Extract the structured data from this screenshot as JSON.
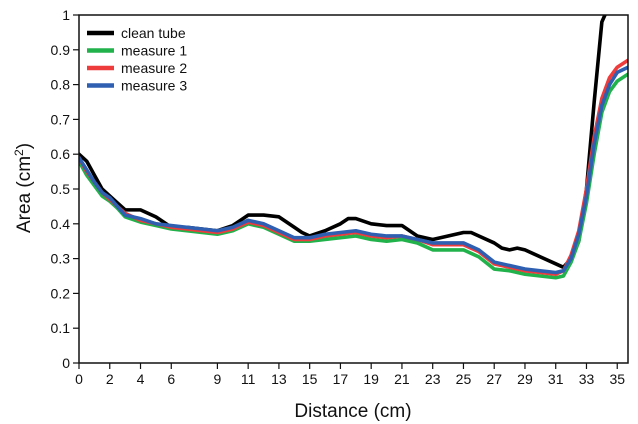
{
  "chart_data": {
    "type": "line",
    "title": "",
    "xlabel": "Distance (cm)",
    "ylabel_main": "Area (cm",
    "ylabel_sup": "2",
    "ylabel_close": ")",
    "xlim": [
      0,
      35.7
    ],
    "ylim": [
      0,
      1
    ],
    "xticks": [
      0,
      2,
      4,
      6,
      9,
      11,
      13,
      15,
      17,
      19,
      21,
      23,
      25,
      27,
      29,
      31,
      33,
      35
    ],
    "yticks": [
      0,
      0.1,
      0.2,
      0.3,
      0.4,
      0.5,
      0.6,
      0.7,
      0.8,
      0.9,
      1
    ],
    "ytick_labels": [
      "0",
      "0.1",
      "0.2",
      "0.3",
      "0.4",
      "0.5",
      "0.6",
      "0.7",
      "0.8",
      "0.9",
      "1"
    ],
    "grid": false,
    "legend": "top-left",
    "series": [
      {
        "name": "clean tube",
        "color": "#000000",
        "x": [
          0,
          0.5,
          1,
          1.5,
          2,
          2.5,
          3,
          3.5,
          4,
          5,
          6,
          7,
          8,
          9,
          10,
          10.5,
          11,
          12,
          13,
          14,
          14.5,
          15,
          16,
          17,
          17.5,
          18,
          19,
          20,
          21,
          22,
          23,
          24,
          25,
          25.5,
          26,
          27,
          27.5,
          28,
          28.5,
          29,
          30,
          31,
          31.5,
          32,
          32.5,
          33,
          33.5,
          34,
          34.2
        ],
        "y": [
          0.6,
          0.58,
          0.54,
          0.5,
          0.48,
          0.46,
          0.44,
          0.44,
          0.44,
          0.42,
          0.39,
          0.39,
          0.385,
          0.38,
          0.395,
          0.41,
          0.425,
          0.425,
          0.42,
          0.39,
          0.375,
          0.365,
          0.38,
          0.4,
          0.415,
          0.415,
          0.4,
          0.395,
          0.395,
          0.365,
          0.355,
          0.365,
          0.375,
          0.375,
          0.365,
          0.345,
          0.33,
          0.325,
          0.33,
          0.325,
          0.305,
          0.285,
          0.275,
          0.3,
          0.35,
          0.5,
          0.75,
          0.98,
          1.0
        ]
      },
      {
        "name": "measure 1",
        "color": "#21b24b",
        "x": [
          0,
          0.5,
          1,
          1.5,
          2,
          2.5,
          3,
          4,
          5,
          6,
          7,
          8,
          9,
          10,
          11,
          12,
          13,
          14,
          15,
          16,
          17,
          18,
          19,
          20,
          21,
          22,
          23,
          24,
          25,
          26,
          27,
          28,
          29,
          30,
          31,
          31.5,
          32,
          32.5,
          33,
          33.5,
          34,
          34.5,
          35,
          35.7
        ],
        "y": [
          0.58,
          0.54,
          0.51,
          0.48,
          0.465,
          0.445,
          0.42,
          0.405,
          0.395,
          0.385,
          0.38,
          0.375,
          0.37,
          0.38,
          0.4,
          0.39,
          0.37,
          0.35,
          0.35,
          0.355,
          0.36,
          0.365,
          0.355,
          0.35,
          0.355,
          0.345,
          0.325,
          0.325,
          0.325,
          0.305,
          0.27,
          0.265,
          0.255,
          0.25,
          0.245,
          0.25,
          0.29,
          0.35,
          0.46,
          0.6,
          0.72,
          0.78,
          0.81,
          0.83
        ]
      },
      {
        "name": "measure 2",
        "color": "#ee3b3b",
        "x": [
          0,
          0.5,
          1,
          1.5,
          2,
          2.5,
          3,
          4,
          5,
          6,
          7,
          8,
          9,
          10,
          11,
          12,
          13,
          14,
          15,
          16,
          17,
          18,
          19,
          20,
          21,
          22,
          23,
          24,
          25,
          26,
          27,
          28,
          29,
          30,
          31,
          31.5,
          32,
          32.5,
          33,
          33.5,
          34,
          34.5,
          35,
          35.7
        ],
        "y": [
          0.59,
          0.55,
          0.52,
          0.49,
          0.47,
          0.45,
          0.43,
          0.41,
          0.4,
          0.39,
          0.385,
          0.38,
          0.375,
          0.385,
          0.405,
          0.395,
          0.375,
          0.355,
          0.355,
          0.365,
          0.37,
          0.375,
          0.365,
          0.36,
          0.365,
          0.355,
          0.34,
          0.34,
          0.34,
          0.32,
          0.285,
          0.275,
          0.265,
          0.26,
          0.255,
          0.265,
          0.31,
          0.38,
          0.5,
          0.65,
          0.76,
          0.82,
          0.85,
          0.87
        ]
      },
      {
        "name": "measure 3",
        "color": "#2e5fb0",
        "x": [
          0,
          0.5,
          1,
          1.5,
          2,
          2.5,
          3,
          4,
          5,
          6,
          7,
          8,
          9,
          10,
          11,
          12,
          13,
          14,
          15,
          16,
          17,
          18,
          19,
          20,
          21,
          22,
          23,
          24,
          25,
          26,
          27,
          28,
          29,
          30,
          31,
          31.5,
          32,
          32.5,
          33,
          33.5,
          34,
          34.5,
          35,
          35.7
        ],
        "y": [
          0.59,
          0.555,
          0.52,
          0.49,
          0.475,
          0.45,
          0.425,
          0.415,
          0.4,
          0.395,
          0.39,
          0.385,
          0.38,
          0.39,
          0.41,
          0.4,
          0.38,
          0.36,
          0.36,
          0.37,
          0.375,
          0.38,
          0.37,
          0.365,
          0.365,
          0.355,
          0.345,
          0.345,
          0.345,
          0.325,
          0.29,
          0.28,
          0.27,
          0.265,
          0.26,
          0.265,
          0.3,
          0.37,
          0.48,
          0.63,
          0.74,
          0.8,
          0.835,
          0.85
        ]
      }
    ]
  }
}
